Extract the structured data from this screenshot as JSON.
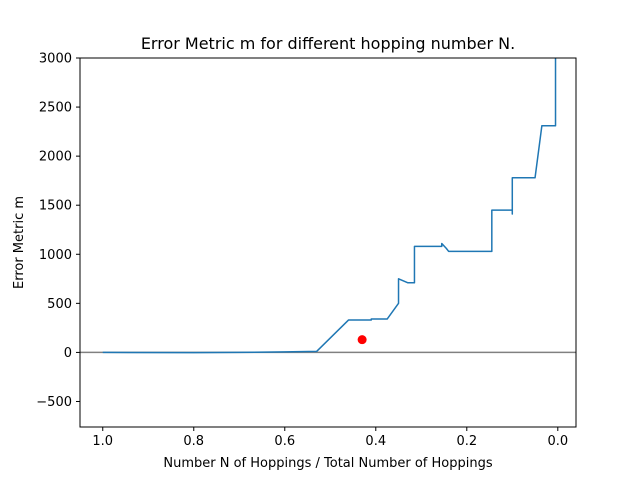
{
  "chart_data": {
    "type": "line",
    "title": "Error Metric m for different hopping number N.",
    "xlabel": "Number N of Hoppings / Total Number of Hoppings",
    "ylabel": "Error Metric m",
    "xlim": [
      1.05,
      -0.04
    ],
    "ylim": [
      -760,
      3000
    ],
    "x_reversed": true,
    "grid": false,
    "x_ticks": [
      {
        "value": 1.0,
        "label": "1.0"
      },
      {
        "value": 0.8,
        "label": "0.8"
      },
      {
        "value": 0.6,
        "label": "0.6"
      },
      {
        "value": 0.4,
        "label": "0.4"
      },
      {
        "value": 0.2,
        "label": "0.2"
      },
      {
        "value": 0.0,
        "label": "0.0"
      }
    ],
    "y_ticks": [
      {
        "value": -500,
        "label": "−500"
      },
      {
        "value": 0,
        "label": "0"
      },
      {
        "value": 500,
        "label": "500"
      },
      {
        "value": 1000,
        "label": "1000"
      },
      {
        "value": 1500,
        "label": "1500"
      },
      {
        "value": 2000,
        "label": "2000"
      },
      {
        "value": 2500,
        "label": "2500"
      },
      {
        "value": 3000,
        "label": "3000"
      }
    ],
    "series": [
      {
        "color": "#1f77b4",
        "x": [
          1.0,
          0.8,
          0.7,
          0.6,
          0.53,
          0.46,
          0.41,
          0.41,
          0.375,
          0.35,
          0.35,
          0.33,
          0.315,
          0.315,
          0.255,
          0.255,
          0.245,
          0.24,
          0.145,
          0.145,
          0.1,
          0.1,
          0.1,
          0.05,
          0.035,
          0.01,
          0.01,
          0.005,
          0.005
        ],
        "y": [
          0,
          -2,
          0,
          5,
          10,
          330,
          330,
          340,
          340,
          500,
          750,
          710,
          710,
          1080,
          1080,
          1110,
          1060,
          1030,
          1030,
          1450,
          1450,
          1410,
          1780,
          1780,
          2310,
          2310,
          2310,
          2310,
          3000
        ]
      }
    ],
    "reference_line": {
      "y": 0,
      "color": "#808080"
    },
    "highlight_point": {
      "x": 0.43,
      "y": 130,
      "color": "#ff0000"
    }
  }
}
